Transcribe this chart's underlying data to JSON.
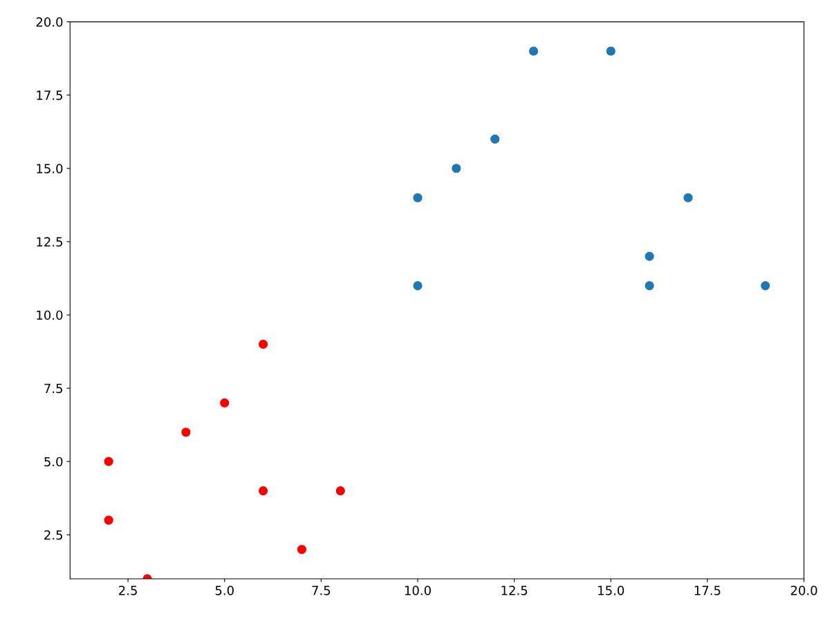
{
  "chart_data": {
    "type": "scatter",
    "xlim": [
      1,
      20
    ],
    "ylim": [
      1,
      20
    ],
    "xticks": [
      2.5,
      {
        "value": 5,
        "label": "5.0"
      },
      7.5,
      {
        "value": 10,
        "label": "10.0"
      },
      12.5,
      {
        "value": 15,
        "label": "15.0"
      },
      17.5,
      {
        "value": 20,
        "label": "20.0"
      }
    ],
    "yticks": [
      2.5,
      {
        "value": 5,
        "label": "5.0"
      },
      7.5,
      {
        "value": 10,
        "label": "10.0"
      },
      12.5,
      {
        "value": 15,
        "label": "15.0"
      },
      17.5,
      {
        "value": 20,
        "label": "20.0"
      }
    ],
    "grid": false,
    "marker": "circle",
    "series": [
      {
        "color": "#1f77b4",
        "x": [
          10,
          10,
          11,
          12,
          13,
          15,
          16,
          16,
          17,
          19
        ],
        "values": [
          14,
          11,
          15,
          16,
          19,
          19,
          12,
          11,
          14,
          11
        ]
      },
      {
        "color": "#ff0000",
        "x": [
          2,
          2,
          3,
          4,
          5,
          6,
          6,
          7,
          8
        ],
        "values": [
          5,
          3,
          1,
          6,
          7,
          9,
          4,
          2,
          4
        ]
      }
    ]
  }
}
